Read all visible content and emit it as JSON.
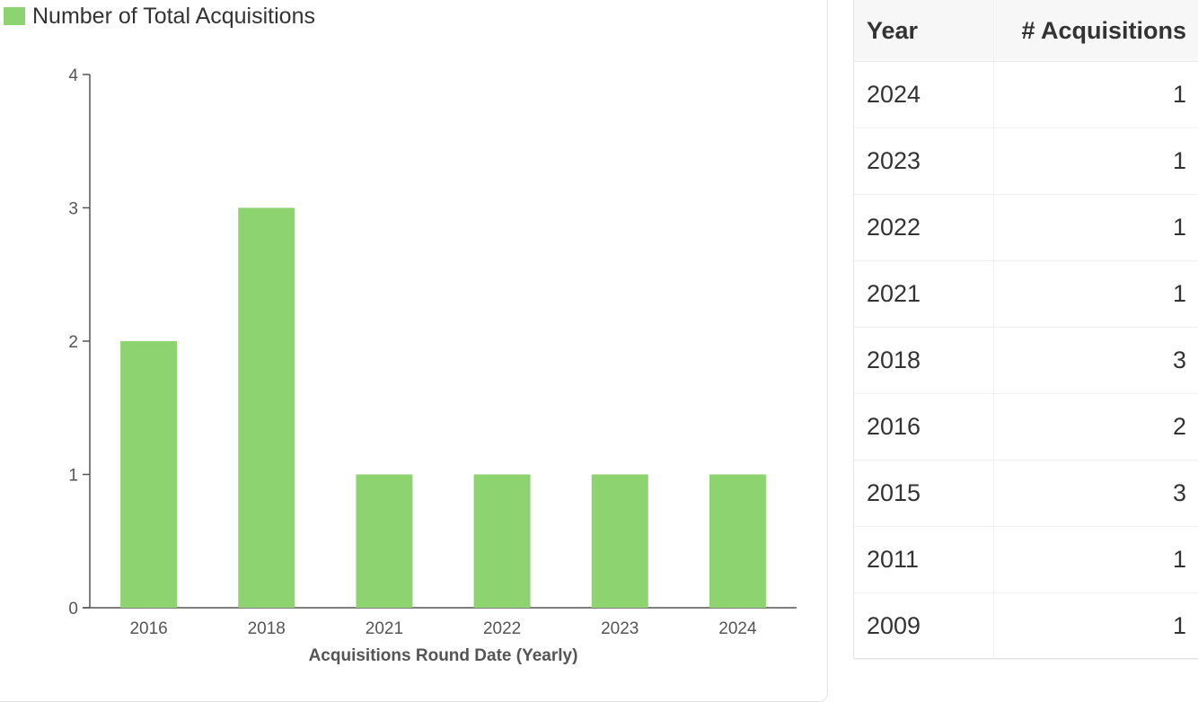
{
  "chart_data": {
    "type": "bar",
    "title": "",
    "legend": {
      "label": "Number of Total Acquisitions",
      "position": "top-left"
    },
    "xlabel": "Acquisitions Round Date (Yearly)",
    "ylabel": "",
    "categories": [
      "2016",
      "2018",
      "2021",
      "2022",
      "2023",
      "2024"
    ],
    "series": [
      {
        "name": "Number of Total Acquisitions",
        "values": [
          2,
          3,
          1,
          1,
          1,
          1
        ]
      }
    ],
    "ylim": [
      0,
      4
    ],
    "yticks": [
      0,
      1,
      2,
      3,
      4
    ],
    "grid": false,
    "colors": {
      "bar": "#8dd36f",
      "axis": "#555555",
      "tick_text": "#555555"
    }
  },
  "table": {
    "headers": {
      "year": "Year",
      "count": "# Acquisitions"
    },
    "rows": [
      {
        "year": "2024",
        "count": "1"
      },
      {
        "year": "2023",
        "count": "1"
      },
      {
        "year": "2022",
        "count": "1"
      },
      {
        "year": "2021",
        "count": "1"
      },
      {
        "year": "2018",
        "count": "3"
      },
      {
        "year": "2016",
        "count": "2"
      },
      {
        "year": "2015",
        "count": "3"
      },
      {
        "year": "2011",
        "count": "1"
      },
      {
        "year": "2009",
        "count": "1"
      }
    ]
  }
}
